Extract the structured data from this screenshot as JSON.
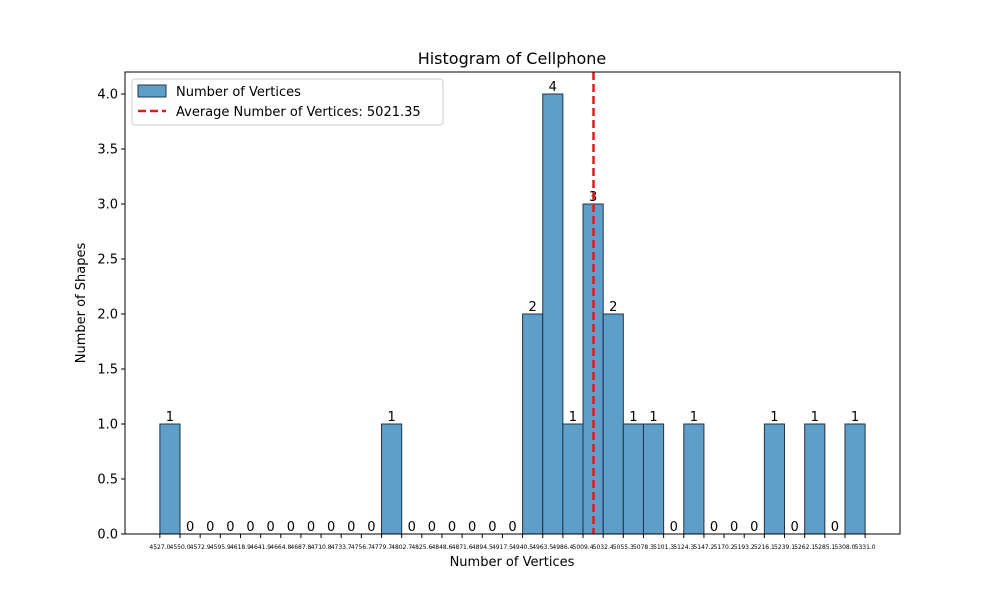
{
  "chart_data": {
    "type": "bar",
    "title": "Histogram of Cellphone",
    "xlabel": "Number of Vertices",
    "ylabel": "Number of Shapes",
    "ylim": [
      0,
      4.2
    ],
    "y_ticks": [
      "0.0",
      "0.5",
      "1.0",
      "1.5",
      "2.0",
      "2.5",
      "3.0",
      "3.5",
      "4.0"
    ],
    "x_ticks": [
      "4527.0",
      "4550.0",
      "4572.9",
      "4595.9",
      "4618.9",
      "4641.9",
      "4664.8",
      "4687.8",
      "4710.8",
      "4733.7",
      "4756.7",
      "4779.7",
      "4802.7",
      "4825.6",
      "4848.6",
      "4871.6",
      "4894.5",
      "4917.5",
      "4940.5",
      "4963.5",
      "4986.4",
      "5009.4",
      "5032.4",
      "5055.3",
      "5078.3",
      "5101.3",
      "5124.3",
      "5147.2",
      "5170.2",
      "5193.2",
      "5216.1",
      "5239.1",
      "5262.1",
      "5285.1",
      "5308.0",
      "5331.0"
    ],
    "bin_edges": [
      4527.0,
      4549.97,
      4572.94,
      4595.91,
      4618.89,
      4641.86,
      4664.83,
      4687.8,
      4710.77,
      4733.74,
      4756.71,
      4779.69,
      4802.66,
      4825.63,
      4848.6,
      4871.57,
      4894.54,
      4917.51,
      4940.49,
      4963.46,
      4986.43,
      5009.4,
      5032.37,
      5055.34,
      5078.31,
      5101.29,
      5124.26,
      5147.23,
      5170.2,
      5193.17,
      5216.14,
      5239.11,
      5262.09,
      5285.06,
      5308.03,
      5331.0
    ],
    "values": [
      1,
      0,
      0,
      0,
      0,
      0,
      0,
      0,
      0,
      0,
      0,
      1,
      0,
      0,
      0,
      0,
      0,
      0,
      2,
      4,
      1,
      3,
      2,
      1,
      1,
      0,
      1,
      0,
      0,
      0,
      1,
      0,
      1,
      0,
      1
    ],
    "bar_color": "#5f9ec9",
    "bar_edge_color": "#1f3447",
    "average": {
      "value": 5021.35,
      "color": "#e31a1c",
      "label": "Average Number of Vertices: 5021.35"
    },
    "legend": {
      "placement": "top-left",
      "entries": [
        "Number of Vertices",
        "Average Number of Vertices: 5021.35"
      ]
    },
    "grid": false
  }
}
